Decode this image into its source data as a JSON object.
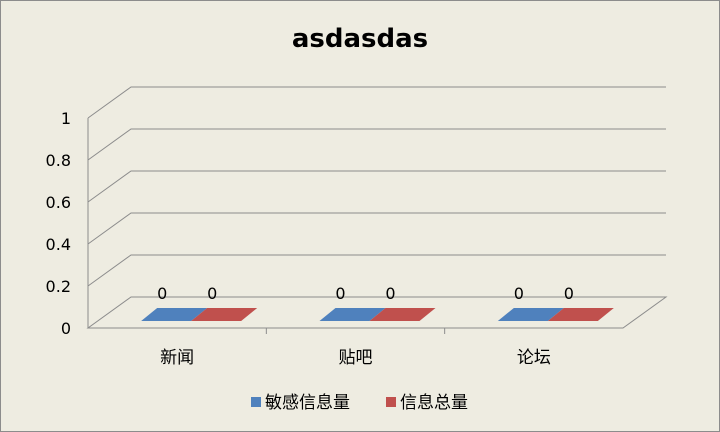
{
  "chart_data": {
    "type": "bar",
    "title": "asdasdas",
    "categories": [
      "新闻",
      "贴吧",
      "论坛"
    ],
    "series": [
      {
        "name": "敏感信息量",
        "values": [
          0,
          0,
          0
        ],
        "color": "#4F81BD"
      },
      {
        "name": "信息总量",
        "values": [
          0,
          0,
          0
        ],
        "color": "#C0504D"
      }
    ],
    "ylim": [
      0,
      1
    ],
    "yticks": [
      "0",
      "0.2",
      "0.4",
      "0.6",
      "0.8",
      "1"
    ],
    "data_labels": true,
    "grid": true,
    "three_d": true,
    "legend": "bottom",
    "colors": {
      "background": "#EEECE1",
      "gridline": "#8C8C8C",
      "series_1": "#4F81BD",
      "series_2": "#C0504D"
    }
  }
}
